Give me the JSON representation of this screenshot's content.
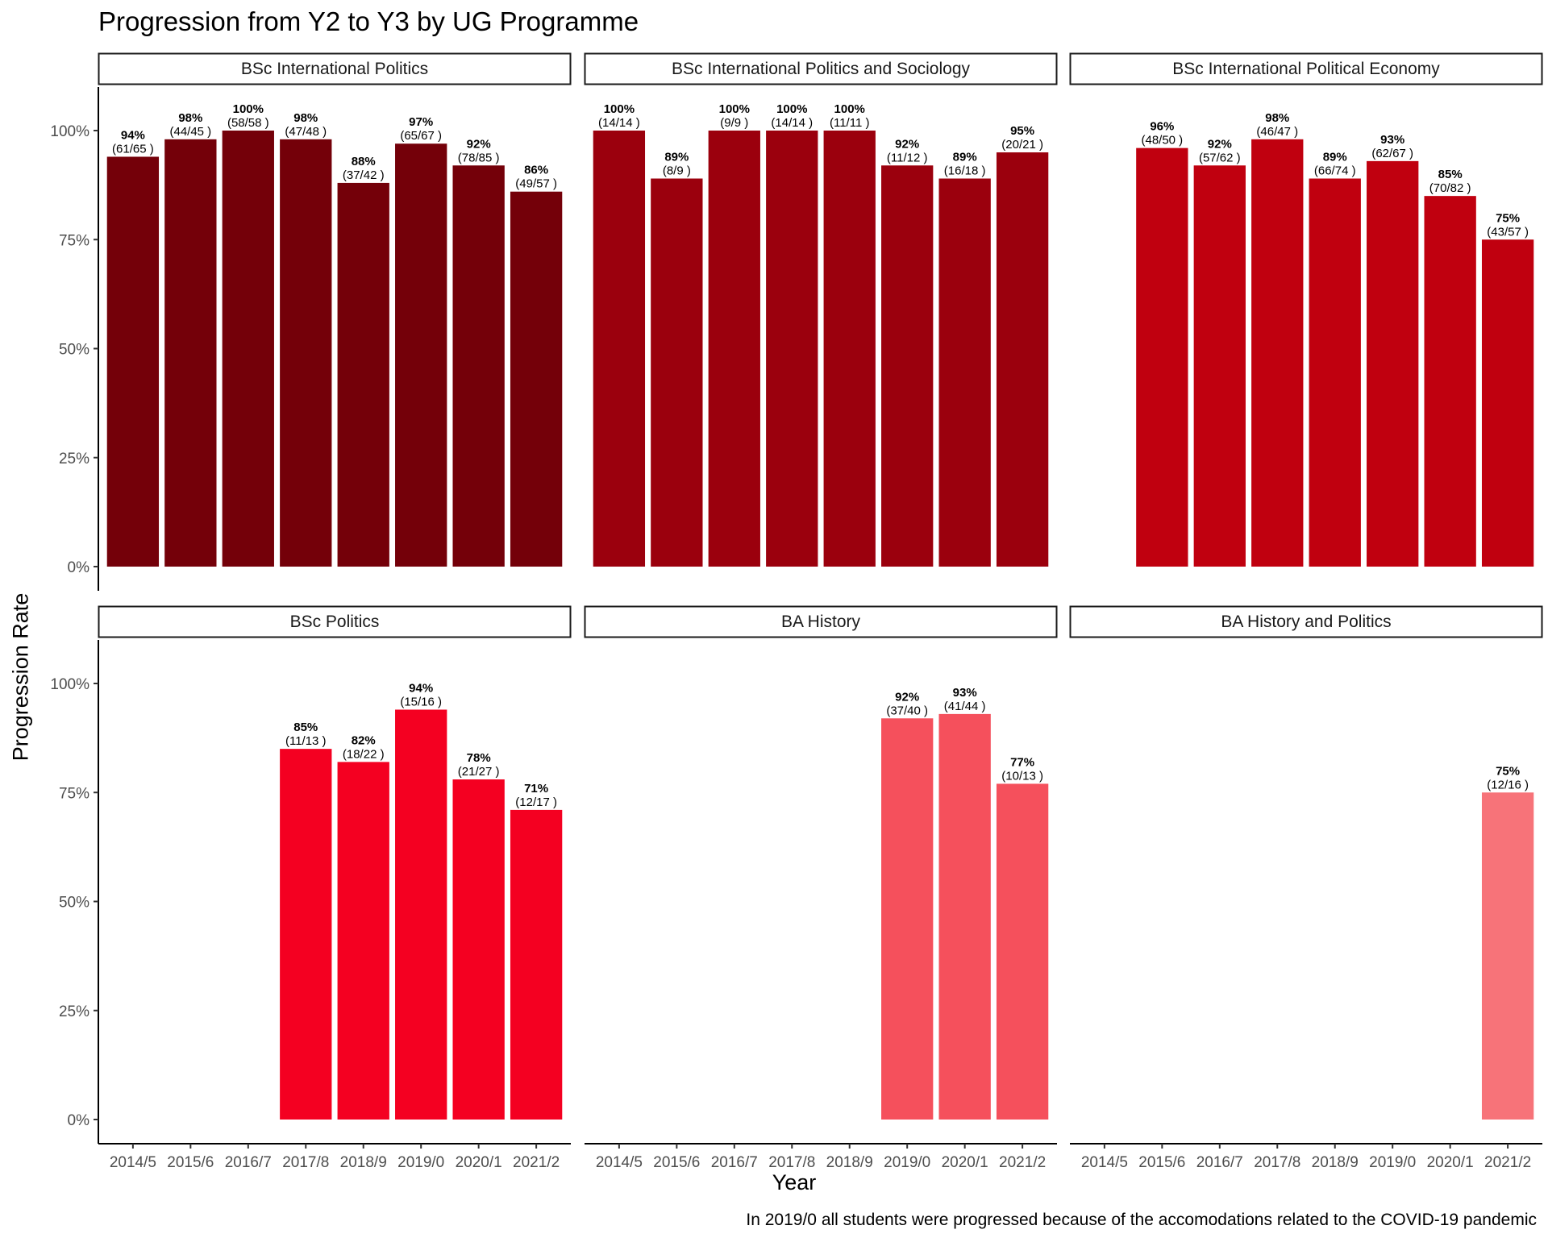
{
  "chart_data": {
    "type": "bar",
    "title": "Progression from Y2 to Y3 by UG Programme",
    "xlabel": "Year",
    "ylabel": "Progression Rate",
    "caption": "In 2019/0 all students were progressed because of the accomodations related to the COVID-19 pandemic",
    "categories": [
      "2014/5",
      "2015/6",
      "2016/7",
      "2017/8",
      "2018/9",
      "2019/0",
      "2020/1",
      "2021/2"
    ],
    "ylim": [
      0,
      1.1
    ],
    "y_ticks": [
      0,
      0.25,
      0.5,
      0.75,
      1.0
    ],
    "y_tick_labels": [
      "0%",
      "25%",
      "50%",
      "75%",
      "100%"
    ],
    "grid": false,
    "legend": "none",
    "panels": [
      {
        "name": "BSc International Politics",
        "color": "#740009",
        "bars": [
          {
            "x": "2014/5",
            "value": 0.94,
            "pct_label": "94%",
            "count_label": "(61/65 )"
          },
          {
            "x": "2015/6",
            "value": 0.98,
            "pct_label": "98%",
            "count_label": "(44/45 )"
          },
          {
            "x": "2016/7",
            "value": 1.0,
            "pct_label": "100%",
            "count_label": "(58/58 )"
          },
          {
            "x": "2017/8",
            "value": 0.98,
            "pct_label": "98%",
            "count_label": "(47/48 )"
          },
          {
            "x": "2018/9",
            "value": 0.88,
            "pct_label": "88%",
            "count_label": "(37/42 )"
          },
          {
            "x": "2019/0",
            "value": 0.97,
            "pct_label": "97%",
            "count_label": "(65/67 )"
          },
          {
            "x": "2020/1",
            "value": 0.92,
            "pct_label": "92%",
            "count_label": "(78/85 )"
          },
          {
            "x": "2021/2",
            "value": 0.86,
            "pct_label": "86%",
            "count_label": "(49/57 )"
          }
        ]
      },
      {
        "name": "BSc International Politics and Sociology",
        "color": "#9b000d",
        "bars": [
          {
            "x": "2014/5",
            "value": 1.0,
            "pct_label": "100%",
            "count_label": "(14/14 )"
          },
          {
            "x": "2015/6",
            "value": 0.89,
            "pct_label": "89%",
            "count_label": "(8/9 )"
          },
          {
            "x": "2016/7",
            "value": 1.0,
            "pct_label": "100%",
            "count_label": "(9/9 )"
          },
          {
            "x": "2017/8",
            "value": 1.0,
            "pct_label": "100%",
            "count_label": "(14/14 )"
          },
          {
            "x": "2018/9",
            "value": 1.0,
            "pct_label": "100%",
            "count_label": "(11/11 )"
          },
          {
            "x": "2019/0",
            "value": 0.92,
            "pct_label": "92%",
            "count_label": "(11/12 )"
          },
          {
            "x": "2020/1",
            "value": 0.89,
            "pct_label": "89%",
            "count_label": "(16/18 )"
          },
          {
            "x": "2021/2",
            "value": 0.95,
            "pct_label": "95%",
            "count_label": "(20/21 )"
          }
        ]
      },
      {
        "name": "BSc International Political Economy",
        "color": "#c0000f",
        "bars": [
          {
            "x": "2015/6",
            "value": 0.96,
            "pct_label": "96%",
            "count_label": "(48/50 )"
          },
          {
            "x": "2016/7",
            "value": 0.92,
            "pct_label": "92%",
            "count_label": "(57/62 )"
          },
          {
            "x": "2017/8",
            "value": 0.98,
            "pct_label": "98%",
            "count_label": "(46/47 )"
          },
          {
            "x": "2018/9",
            "value": 0.89,
            "pct_label": "89%",
            "count_label": "(66/74 )"
          },
          {
            "x": "2019/0",
            "value": 0.93,
            "pct_label": "93%",
            "count_label": "(62/67 )"
          },
          {
            "x": "2020/1",
            "value": 0.85,
            "pct_label": "85%",
            "count_label": "(70/82 )"
          },
          {
            "x": "2021/2",
            "value": 0.75,
            "pct_label": "75%",
            "count_label": "(43/57 )"
          }
        ]
      },
      {
        "name": "BSc Politics",
        "color": "#f40021",
        "bars": [
          {
            "x": "2017/8",
            "value": 0.85,
            "pct_label": "85%",
            "count_label": "(11/13 )"
          },
          {
            "x": "2018/9",
            "value": 0.82,
            "pct_label": "82%",
            "count_label": "(18/22 )"
          },
          {
            "x": "2019/0",
            "value": 0.94,
            "pct_label": "94%",
            "count_label": "(15/16 )"
          },
          {
            "x": "2020/1",
            "value": 0.78,
            "pct_label": "78%",
            "count_label": "(21/27 )"
          },
          {
            "x": "2021/2",
            "value": 0.71,
            "pct_label": "71%",
            "count_label": "(12/17 )"
          }
        ]
      },
      {
        "name": "BA History",
        "color": "#f5505c",
        "bars": [
          {
            "x": "2019/0",
            "value": 0.92,
            "pct_label": "92%",
            "count_label": "(37/40 )"
          },
          {
            "x": "2020/1",
            "value": 0.93,
            "pct_label": "93%",
            "count_label": "(41/44 )"
          },
          {
            "x": "2021/2",
            "value": 0.77,
            "pct_label": "77%",
            "count_label": "(10/13 )"
          }
        ]
      },
      {
        "name": "BA History and Politics",
        "color": "#f77379",
        "bars": [
          {
            "x": "2021/2",
            "value": 0.75,
            "pct_label": "75%",
            "count_label": "(12/16 )"
          }
        ]
      }
    ]
  }
}
